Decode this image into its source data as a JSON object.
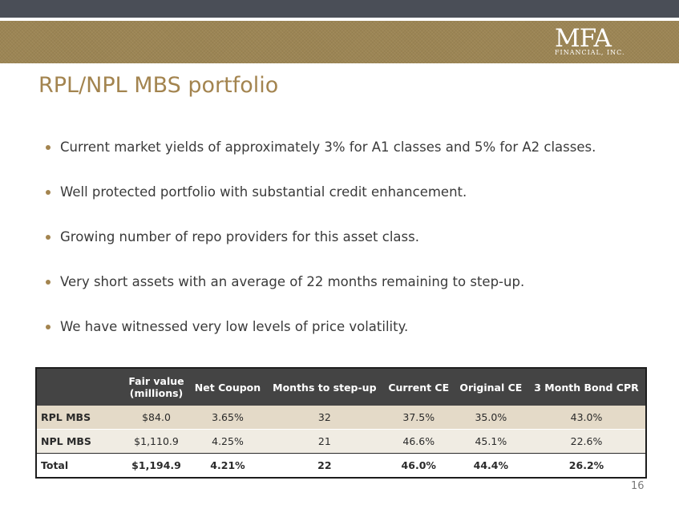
{
  "header": {
    "logo_mark": "MFA",
    "logo_sub": "FINANCIAL, INC."
  },
  "slide": {
    "title": "RPL/NPL MBS portfolio",
    "page_number": "16"
  },
  "bullets": [
    "Current market yields of approximately 3% for A1 classes and 5% for A2 classes.",
    "Well protected portfolio with substantial credit enhancement.",
    "Growing number of repo providers for this asset class.",
    "Very short assets with an average of 22 months remaining to step-up.",
    "We have witnessed very low levels of price volatility."
  ],
  "table": {
    "columns": {
      "fair_value_line1": "Fair value",
      "fair_value_line2": "(millions)",
      "net_coupon": "Net Coupon",
      "months_to_step_up": "Months to step-up",
      "current_ce": "Current CE",
      "original_ce": "Original CE",
      "bond_cpr": "3 Month Bond CPR"
    },
    "rows": [
      {
        "label": "RPL MBS",
        "fair_value": "$84.0",
        "net_coupon": "3.65%",
        "months": "32",
        "current_ce": "37.5%",
        "original_ce": "35.0%",
        "cpr": "43.0%"
      },
      {
        "label": "NPL MBS",
        "fair_value": "$1,110.9",
        "net_coupon": "4.25%",
        "months": "21",
        "current_ce": "46.6%",
        "original_ce": "45.1%",
        "cpr": "22.6%"
      },
      {
        "label": "Total",
        "fair_value": "$1,194.9",
        "net_coupon": "4.21%",
        "months": "22",
        "current_ce": "46.0%",
        "original_ce": "44.4%",
        "cpr": "26.2%"
      }
    ]
  },
  "colors": {
    "brand_gold": "#a3844f",
    "header_dark": "#4a4e57",
    "table_header": "#444444"
  }
}
